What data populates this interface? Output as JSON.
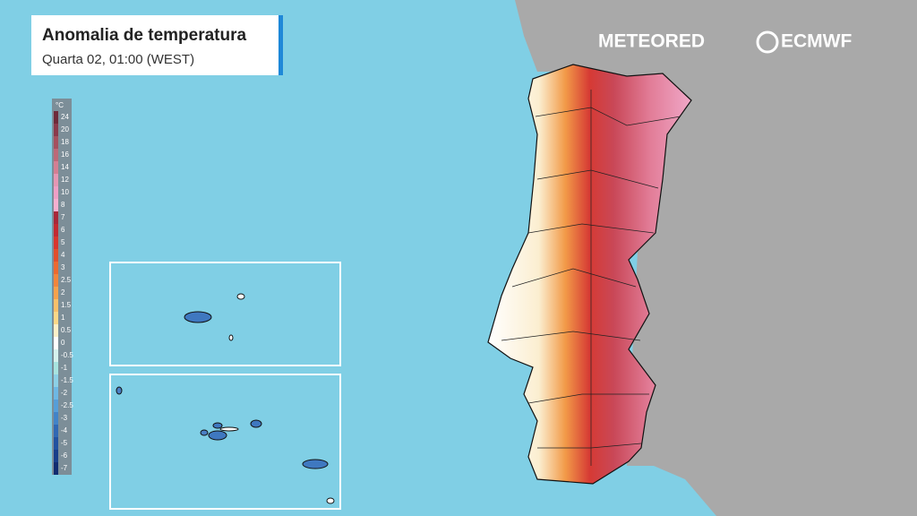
{
  "header": {
    "title": "Anomalia de temperatura",
    "subtitle": "Quarta 02, 01:00 (WEST)"
  },
  "logos": {
    "meteored": "METEORED",
    "ecmwf": "ECMWF"
  },
  "legend": {
    "unit": "°C",
    "values": [
      24,
      20,
      18,
      16,
      14,
      12,
      10,
      8,
      7,
      6,
      5,
      4,
      3,
      2.5,
      2,
      1.5,
      1,
      0.5,
      0,
      -0.5,
      -1,
      -1.5,
      -2,
      -2.5,
      -3,
      -4,
      -5,
      -6,
      -7
    ],
    "colors": [
      "#6e2a3a",
      "#8a3a4c",
      "#a5505f",
      "#bd6878",
      "#d47f93",
      "#e597b4",
      "#ee9fc6",
      "#f4b0d0",
      "#a8283a",
      "#c22a32",
      "#d8362e",
      "#e24f2c",
      "#ec6a30",
      "#f2863c",
      "#f6a24c",
      "#f9c06a",
      "#fbd888",
      "#fdf0c8",
      "#ffffff",
      "#d6f2ee",
      "#a8e4e0",
      "#8cd0e6",
      "#6eb8e4",
      "#569ed8",
      "#4284c8",
      "#3068b4",
      "#2252a0",
      "#183e8a",
      "#112c70"
    ]
  }
}
